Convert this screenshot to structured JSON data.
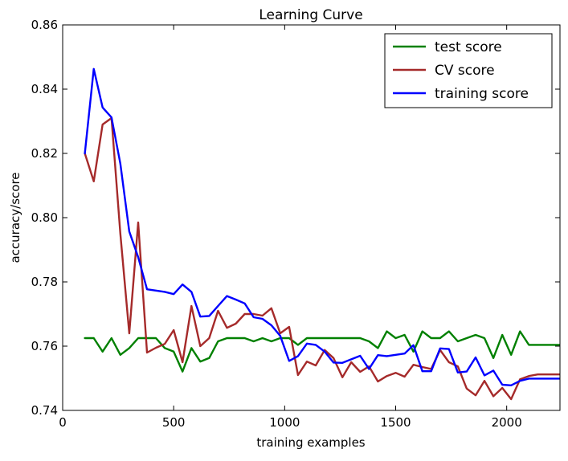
{
  "chart_data": {
    "type": "line",
    "title": "Learning Curve",
    "xlabel": "training examples",
    "ylabel": "accuracy/score",
    "xlim": [
      0,
      2240
    ],
    "ylim": [
      0.74,
      0.86
    ],
    "xticks": [
      "0",
      "500",
      "1000",
      "1500",
      "2000"
    ],
    "xtick_values": [
      0,
      500,
      1000,
      1500,
      2000
    ],
    "yticks": [
      "0.74",
      "0.76",
      "0.78",
      "0.80",
      "0.82",
      "0.84",
      "0.86"
    ],
    "ytick_values": [
      0.74,
      0.76,
      0.78,
      0.8,
      0.82,
      0.84,
      0.86
    ],
    "grid": false,
    "legend_position": "top-right",
    "series": [
      {
        "name": "test score",
        "color": "#008000",
        "x": [
          100,
          140,
          180,
          220,
          260,
          300,
          340,
          380,
          420,
          460,
          500,
          540,
          580,
          620,
          660,
          700,
          740,
          780,
          820,
          860,
          900,
          940,
          980,
          1020,
          1060,
          1100,
          1140,
          1180,
          1220,
          1260,
          1300,
          1340,
          1380,
          1420,
          1460,
          1500,
          1540,
          1580,
          1620,
          1660,
          1700,
          1740,
          1780,
          1820,
          1860,
          1900,
          1940,
          1980,
          2020,
          2060,
          2100,
          2140,
          2180,
          2220,
          2240
        ],
        "y": [
          0.7625,
          0.7625,
          0.7583,
          0.7625,
          0.7573,
          0.7594,
          0.7625,
          0.7625,
          0.7625,
          0.7594,
          0.7583,
          0.7521,
          0.7594,
          0.7552,
          0.7563,
          0.7615,
          0.7625,
          0.7625,
          0.7625,
          0.7615,
          0.7625,
          0.7615,
          0.7625,
          0.7625,
          0.7604,
          0.7625,
          0.7625,
          0.7625,
          0.7625,
          0.7625,
          0.7625,
          0.7625,
          0.7615,
          0.7594,
          0.7646,
          0.7625,
          0.7635,
          0.7583,
          0.7646,
          0.7625,
          0.7625,
          0.7646,
          0.7615,
          0.7625,
          0.7635,
          0.7625,
          0.7563,
          0.7635,
          0.7573,
          0.7646,
          0.7604,
          0.7604,
          0.7604,
          0.7604,
          0.7604
        ]
      },
      {
        "name": "CV score",
        "color": "#A52A2A",
        "x": [
          100,
          140,
          180,
          220,
          260,
          300,
          340,
          380,
          420,
          460,
          500,
          540,
          580,
          620,
          660,
          700,
          740,
          780,
          820,
          860,
          900,
          940,
          980,
          1020,
          1060,
          1100,
          1140,
          1180,
          1220,
          1260,
          1300,
          1340,
          1380,
          1420,
          1460,
          1500,
          1540,
          1580,
          1620,
          1660,
          1700,
          1740,
          1780,
          1820,
          1860,
          1900,
          1940,
          1980,
          2020,
          2060,
          2100,
          2140,
          2180,
          2220,
          2240
        ],
        "y": [
          0.82,
          0.8113,
          0.829,
          0.831,
          0.795,
          0.764,
          0.7985,
          0.758,
          0.7595,
          0.7607,
          0.765,
          0.755,
          0.7725,
          0.76,
          0.7625,
          0.771,
          0.7657,
          0.767,
          0.77,
          0.77,
          0.7695,
          0.7718,
          0.764,
          0.766,
          0.751,
          0.7552,
          0.754,
          0.7588,
          0.7563,
          0.7503,
          0.755,
          0.752,
          0.7537,
          0.749,
          0.7507,
          0.7517,
          0.7505,
          0.7542,
          0.7535,
          0.7529,
          0.7588,
          0.755,
          0.7537,
          0.7468,
          0.7447,
          0.7492,
          0.7444,
          0.747,
          0.7435,
          0.7497,
          0.7507,
          0.7512,
          0.7512,
          0.7512,
          0.7512
        ]
      },
      {
        "name": "training score",
        "color": "#0000FF",
        "x": [
          100,
          140,
          180,
          220,
          260,
          300,
          340,
          380,
          420,
          460,
          500,
          540,
          580,
          620,
          660,
          700,
          740,
          780,
          820,
          860,
          900,
          940,
          980,
          1020,
          1060,
          1100,
          1140,
          1180,
          1220,
          1260,
          1300,
          1340,
          1380,
          1420,
          1460,
          1500,
          1540,
          1580,
          1620,
          1660,
          1700,
          1740,
          1780,
          1820,
          1860,
          1900,
          1940,
          1980,
          2020,
          2060,
          2100,
          2140,
          2180,
          2220,
          2240
        ],
        "y": [
          0.82,
          0.8463,
          0.8343,
          0.8312,
          0.8168,
          0.7957,
          0.7877,
          0.7777,
          0.7773,
          0.7769,
          0.7762,
          0.7792,
          0.7769,
          0.7692,
          0.7694,
          0.7725,
          0.7756,
          0.7745,
          0.7733,
          0.769,
          0.7685,
          0.7665,
          0.7632,
          0.7554,
          0.7569,
          0.7608,
          0.7604,
          0.7583,
          0.7549,
          0.7548,
          0.7559,
          0.757,
          0.7529,
          0.7572,
          0.7569,
          0.7573,
          0.7577,
          0.7603,
          0.7522,
          0.7522,
          0.7593,
          0.7591,
          0.7518,
          0.7521,
          0.7565,
          0.7509,
          0.7524,
          0.748,
          0.7478,
          0.7492,
          0.7499,
          0.7499,
          0.7499,
          0.7499,
          0.7499
        ]
      }
    ]
  }
}
